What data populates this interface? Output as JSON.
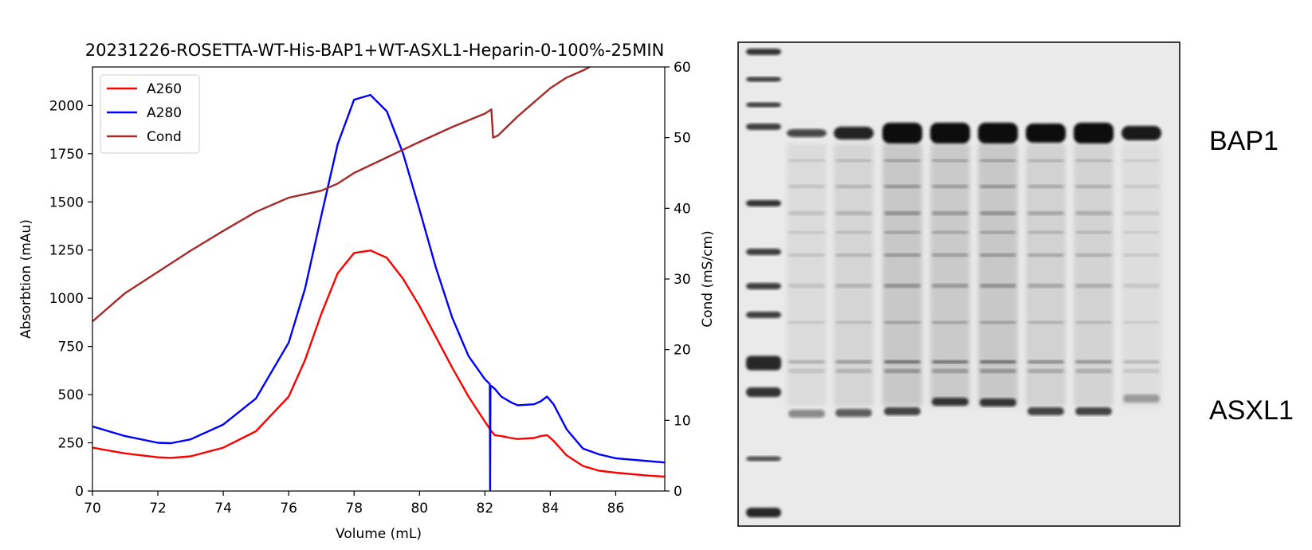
{
  "chart_data": {
    "type": "line",
    "title": "20231226-ROSETTA-WT-His-BAP1+WT-ASXL1-Heparin-0-100%-25MIN",
    "xlabel": "Volume (mL)",
    "ylabel": "Absorbtion (mAu)",
    "y2label": "Cond (mS/cm)",
    "xlim": [
      70,
      87.5
    ],
    "ylim": [
      0,
      2200
    ],
    "y2lim": [
      0,
      60
    ],
    "xticks": [
      "70",
      "72",
      "74",
      "76",
      "78",
      "80",
      "82",
      "84",
      "86"
    ],
    "yticks": [
      "0",
      "250",
      "500",
      "750",
      "1000",
      "1250",
      "1500",
      "1750",
      "2000"
    ],
    "y2ticks": [
      "0",
      "10",
      "20",
      "30",
      "40",
      "50",
      "60"
    ],
    "legend_position": "top-left",
    "grid": false,
    "series": [
      {
        "name": "A260",
        "axis": "left",
        "color": "#ff0000",
        "x": [
          70,
          71,
          72,
          72.4,
          73,
          74,
          75,
          76,
          76.5,
          77,
          77.5,
          78,
          78.5,
          79,
          79.5,
          80,
          80.5,
          81,
          81.5,
          82,
          82.2,
          82.3,
          82.5,
          82.8,
          83,
          83.5,
          83.7,
          83.9,
          84.1,
          84.5,
          85,
          85.5,
          86,
          87,
          87.5
        ],
        "y": [
          225,
          195,
          175,
          172,
          180,
          225,
          310,
          490,
          680,
          920,
          1130,
          1235,
          1248,
          1210,
          1100,
          960,
          800,
          640,
          490,
          360,
          310,
          290,
          285,
          275,
          270,
          275,
          285,
          290,
          260,
          185,
          130,
          105,
          95,
          80,
          75
        ]
      },
      {
        "name": "A280",
        "axis": "left",
        "color": "#0000ff",
        "x": [
          70,
          71,
          72,
          72.4,
          73,
          74,
          75,
          76,
          76.5,
          77,
          77.5,
          78,
          78.5,
          79,
          79.5,
          80,
          80.5,
          81,
          81.5,
          82,
          82.15,
          82.16,
          82.17,
          82.2,
          82.3,
          82.5,
          82.8,
          83,
          83.5,
          83.7,
          83.9,
          84.1,
          84.5,
          85,
          85.5,
          86,
          87,
          87.5
        ],
        "y": [
          335,
          285,
          250,
          248,
          268,
          345,
          480,
          770,
          1050,
          1430,
          1800,
          2030,
          2055,
          1970,
          1750,
          1460,
          1160,
          900,
          700,
          580,
          555,
          5,
          540,
          545,
          530,
          490,
          460,
          445,
          450,
          465,
          490,
          450,
          320,
          220,
          190,
          170,
          155,
          148
        ]
      },
      {
        "name": "Cond",
        "axis": "right",
        "color": "#a52a2a",
        "x": [
          70,
          71,
          72,
          73,
          74,
          75,
          76,
          77,
          77.5,
          78,
          79,
          80,
          81,
          82,
          82.2,
          82.25,
          82.4,
          82.6,
          83,
          83.5,
          84,
          84.5,
          85,
          86,
          87,
          87.5
        ],
        "y": [
          24,
          28,
          31,
          34,
          36.8,
          39.5,
          41.5,
          42.5,
          43.5,
          45,
          47.2,
          49.4,
          51.5,
          53.4,
          54,
          50,
          50.3,
          51.2,
          53,
          55,
          57,
          58.5,
          59.5,
          62,
          64,
          65
        ]
      }
    ]
  },
  "gel": {
    "labels": [
      "BAP1",
      "ASXL1"
    ]
  }
}
